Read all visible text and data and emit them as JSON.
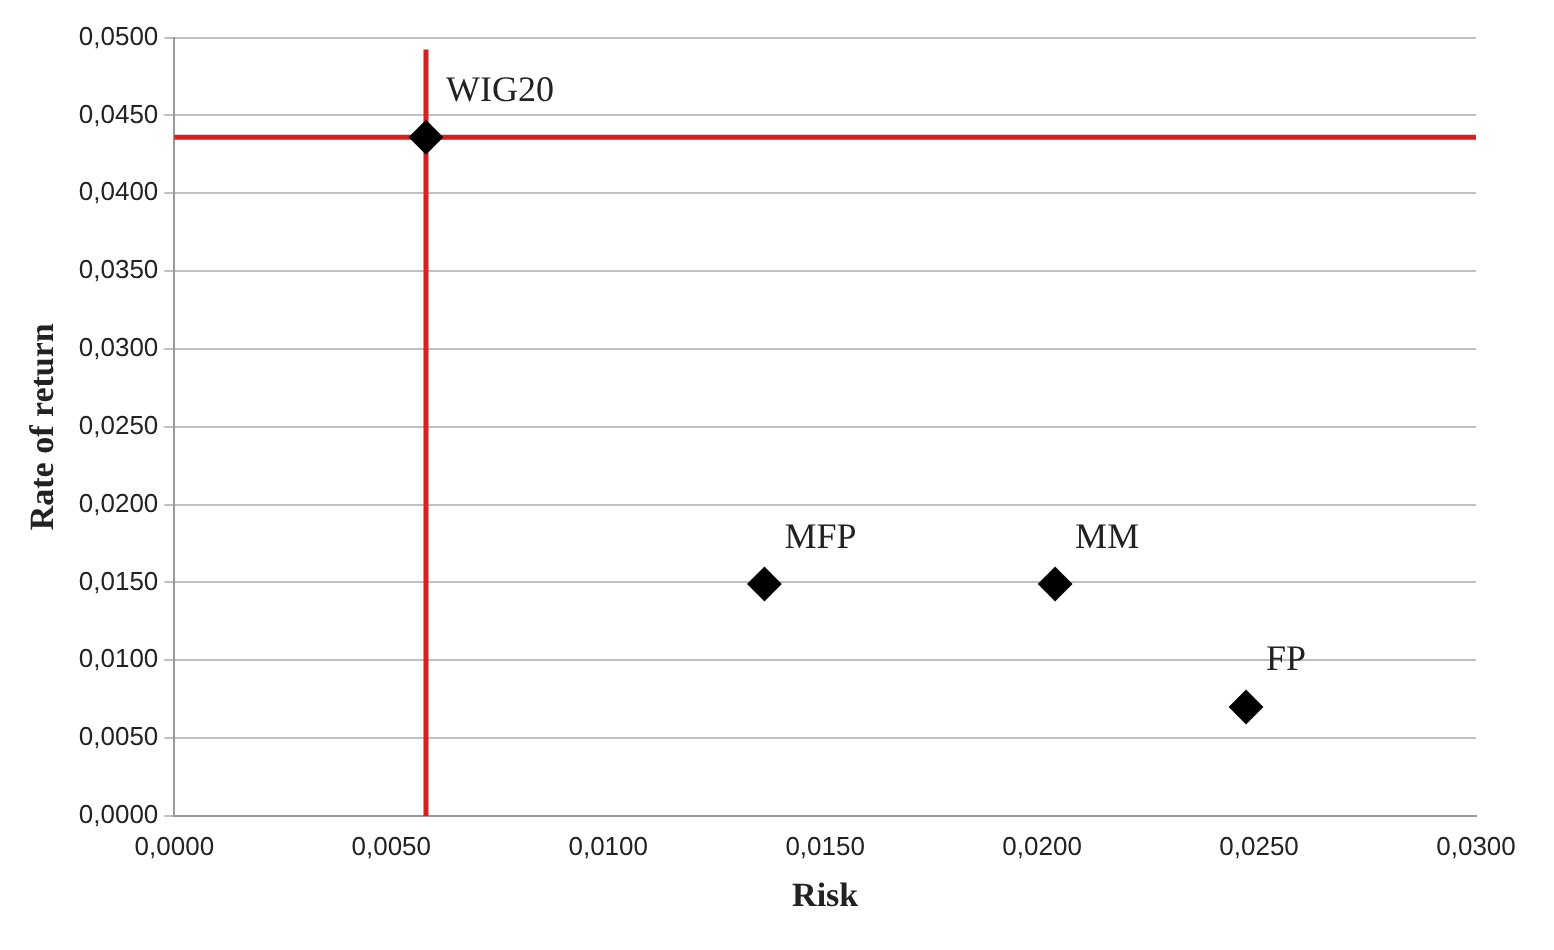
{
  "chart_data": {
    "type": "scatter",
    "xlabel": "Risk",
    "ylabel": "Rate of return",
    "x": [
      0.0058,
      0.0136,
      0.0203,
      0.0247
    ],
    "values": [
      0.0436,
      0.0149,
      0.0149,
      0.007
    ],
    "color": "#000000",
    "marker": "diamond",
    "grid": "y",
    "legend": false,
    "xlim": [
      0,
      0.03
    ],
    "ylim": [
      0,
      0.05
    ],
    "xticks": [
      {
        "value": 0,
        "label": "0,0000"
      },
      {
        "value": 0.005,
        "label": "0,0050"
      },
      {
        "value": 0.01,
        "label": "0,0100"
      },
      {
        "value": 0.015,
        "label": "0,0150"
      },
      {
        "value": 0.02,
        "label": "0,0200"
      },
      {
        "value": 0.025,
        "label": "0,0250"
      },
      {
        "value": 0.03,
        "label": "0,0300"
      }
    ],
    "yticks": [
      {
        "value": 0,
        "label": "0,0000"
      },
      {
        "value": 0.005,
        "label": "0,0050"
      },
      {
        "value": 0.01,
        "label": "0,0100"
      },
      {
        "value": 0.015,
        "label": "0,0150"
      },
      {
        "value": 0.02,
        "label": "0,0200"
      },
      {
        "value": 0.025,
        "label": "0,0250"
      },
      {
        "value": 0.03,
        "label": "0,0300"
      },
      {
        "value": 0.035,
        "label": "0,0350"
      },
      {
        "value": 0.04,
        "label": "0,0400"
      },
      {
        "value": 0.045,
        "label": "0,0450"
      },
      {
        "value": 0.05,
        "label": "0,0500"
      }
    ],
    "ref_lines": [
      {
        "axis": "x",
        "value": 0.0058,
        "color": "#d42020"
      },
      {
        "axis": "y",
        "value": 0.0436,
        "color": "#d42020"
      }
    ],
    "annotations": [
      {
        "text": "WIG20",
        "x": 0.0058,
        "y": 0.0436
      },
      {
        "text": "MFP",
        "x": 0.0136,
        "y": 0.0149
      },
      {
        "text": "MM",
        "x": 0.0203,
        "y": 0.0149
      },
      {
        "text": "FP",
        "x": 0.0247,
        "y": 0.007
      }
    ]
  }
}
